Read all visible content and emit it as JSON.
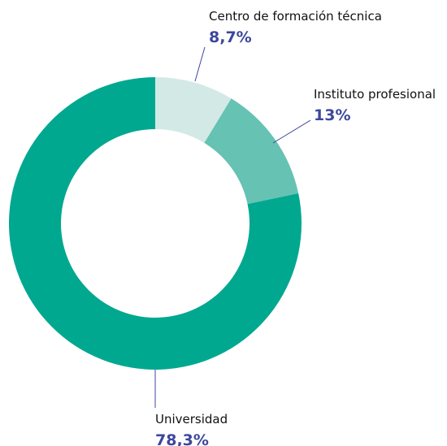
{
  "chart_data": {
    "type": "pie",
    "categories": [
      "Centro de formación técnica",
      "Instituto profesional",
      "Universidad"
    ],
    "values": [
      8.7,
      13,
      78.3
    ],
    "value_labels": [
      "8,7%",
      "13%",
      "78,3%"
    ],
    "colors": [
      "#d3e9e6",
      "#66c2b3",
      "#00a88f"
    ]
  }
}
